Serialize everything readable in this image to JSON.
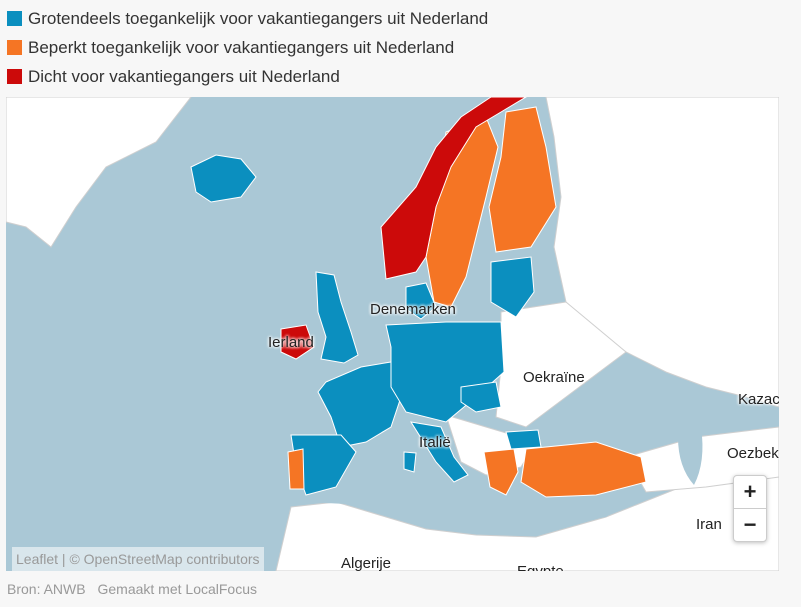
{
  "legend": {
    "items": [
      {
        "label": "Grotendeels toegankelijk voor vakantiegangers uit Nederland",
        "color": "#0b8fbf"
      },
      {
        "label": "Beperkt toegankelijk voor vakantiegangers uit Nederland",
        "color": "#f57524"
      },
      {
        "label": "Dicht voor vakantiegangers uit Nederland",
        "color": "#cc0a0a"
      }
    ]
  },
  "map": {
    "colors": {
      "sea": "#aac8d6",
      "land": "#ffffff",
      "open": "#0b8fbf",
      "limited": "#f57524",
      "closed": "#cc0a0a"
    },
    "labels": {
      "denmark": "Denemarken",
      "ireland": "Ierland",
      "ukraine": "Oekraïne",
      "kazakhstan": "Kazac",
      "uzbekistan": "Oezbek",
      "iran": "Iran",
      "italy": "Italië",
      "algeria": "Algerije",
      "egypt": "Egypte"
    },
    "zoom_in": "+",
    "zoom_out": "−",
    "attribution": "Leaflet | © OpenStreetMap contributors"
  },
  "footer": {
    "source": "Bron: ANWB",
    "made_with": "Gemaakt met LocalFocus"
  }
}
